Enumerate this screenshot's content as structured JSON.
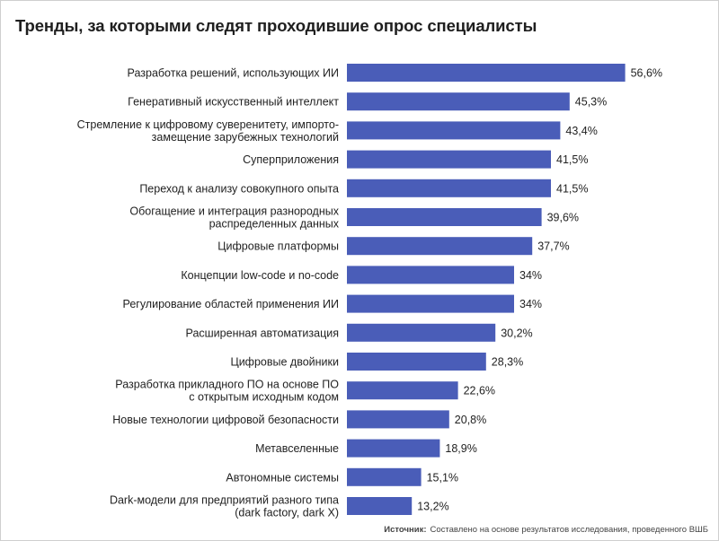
{
  "chart_data": {
    "type": "bar",
    "orientation": "horizontal",
    "title": "Тренды, за которыми следят проходившие опрос специалисты",
    "categories": [
      [
        "Разработка решений, использующих ИИ"
      ],
      [
        "Генеративный искусственный интеллект"
      ],
      [
        "Стремление к цифровому суверенитету, импорто-",
        "замещение зарубежных технологий"
      ],
      [
        "Суперприложения"
      ],
      [
        "Переход к анализу совокупного опыта"
      ],
      [
        "Обогащение и интеграция разнородных",
        "распределенных данных"
      ],
      [
        "Цифровые платформы"
      ],
      [
        "Концепции low-code и no-code"
      ],
      [
        "Регулирование областей применения ИИ"
      ],
      [
        "Расширенная автоматизация"
      ],
      [
        "Цифровые двойники"
      ],
      [
        "Разработка прикладного ПО на основе ПО",
        "с открытым исходным кодом"
      ],
      [
        "Новые технологии цифровой безопасности"
      ],
      [
        "Метавселенные"
      ],
      [
        "Автономные системы"
      ],
      [
        "Dark-модели для предприятий разного типа",
        "(dark factory, dark X)"
      ]
    ],
    "values": [
      56.6,
      45.3,
      43.4,
      41.5,
      41.5,
      39.6,
      37.7,
      34,
      34,
      30.2,
      28.3,
      22.6,
      20.8,
      18.9,
      15.1,
      13.2
    ],
    "value_labels": [
      "56,6%",
      "45,3%",
      "43,4%",
      "41,5%",
      "41,5%",
      "39,6%",
      "37,7%",
      "34%",
      "34%",
      "30,2%",
      "28,3%",
      "22,6%",
      "20,8%",
      "18,9%",
      "15,1%",
      "13,2%"
    ],
    "unit": "%",
    "xlim": [
      0,
      60
    ],
    "grid": false,
    "legend": "none",
    "bar_color": "#4a5db8"
  },
  "source": {
    "label": "Источник:",
    "text": "Составлено на основе результатов исследования, проведенного ВШБ"
  }
}
